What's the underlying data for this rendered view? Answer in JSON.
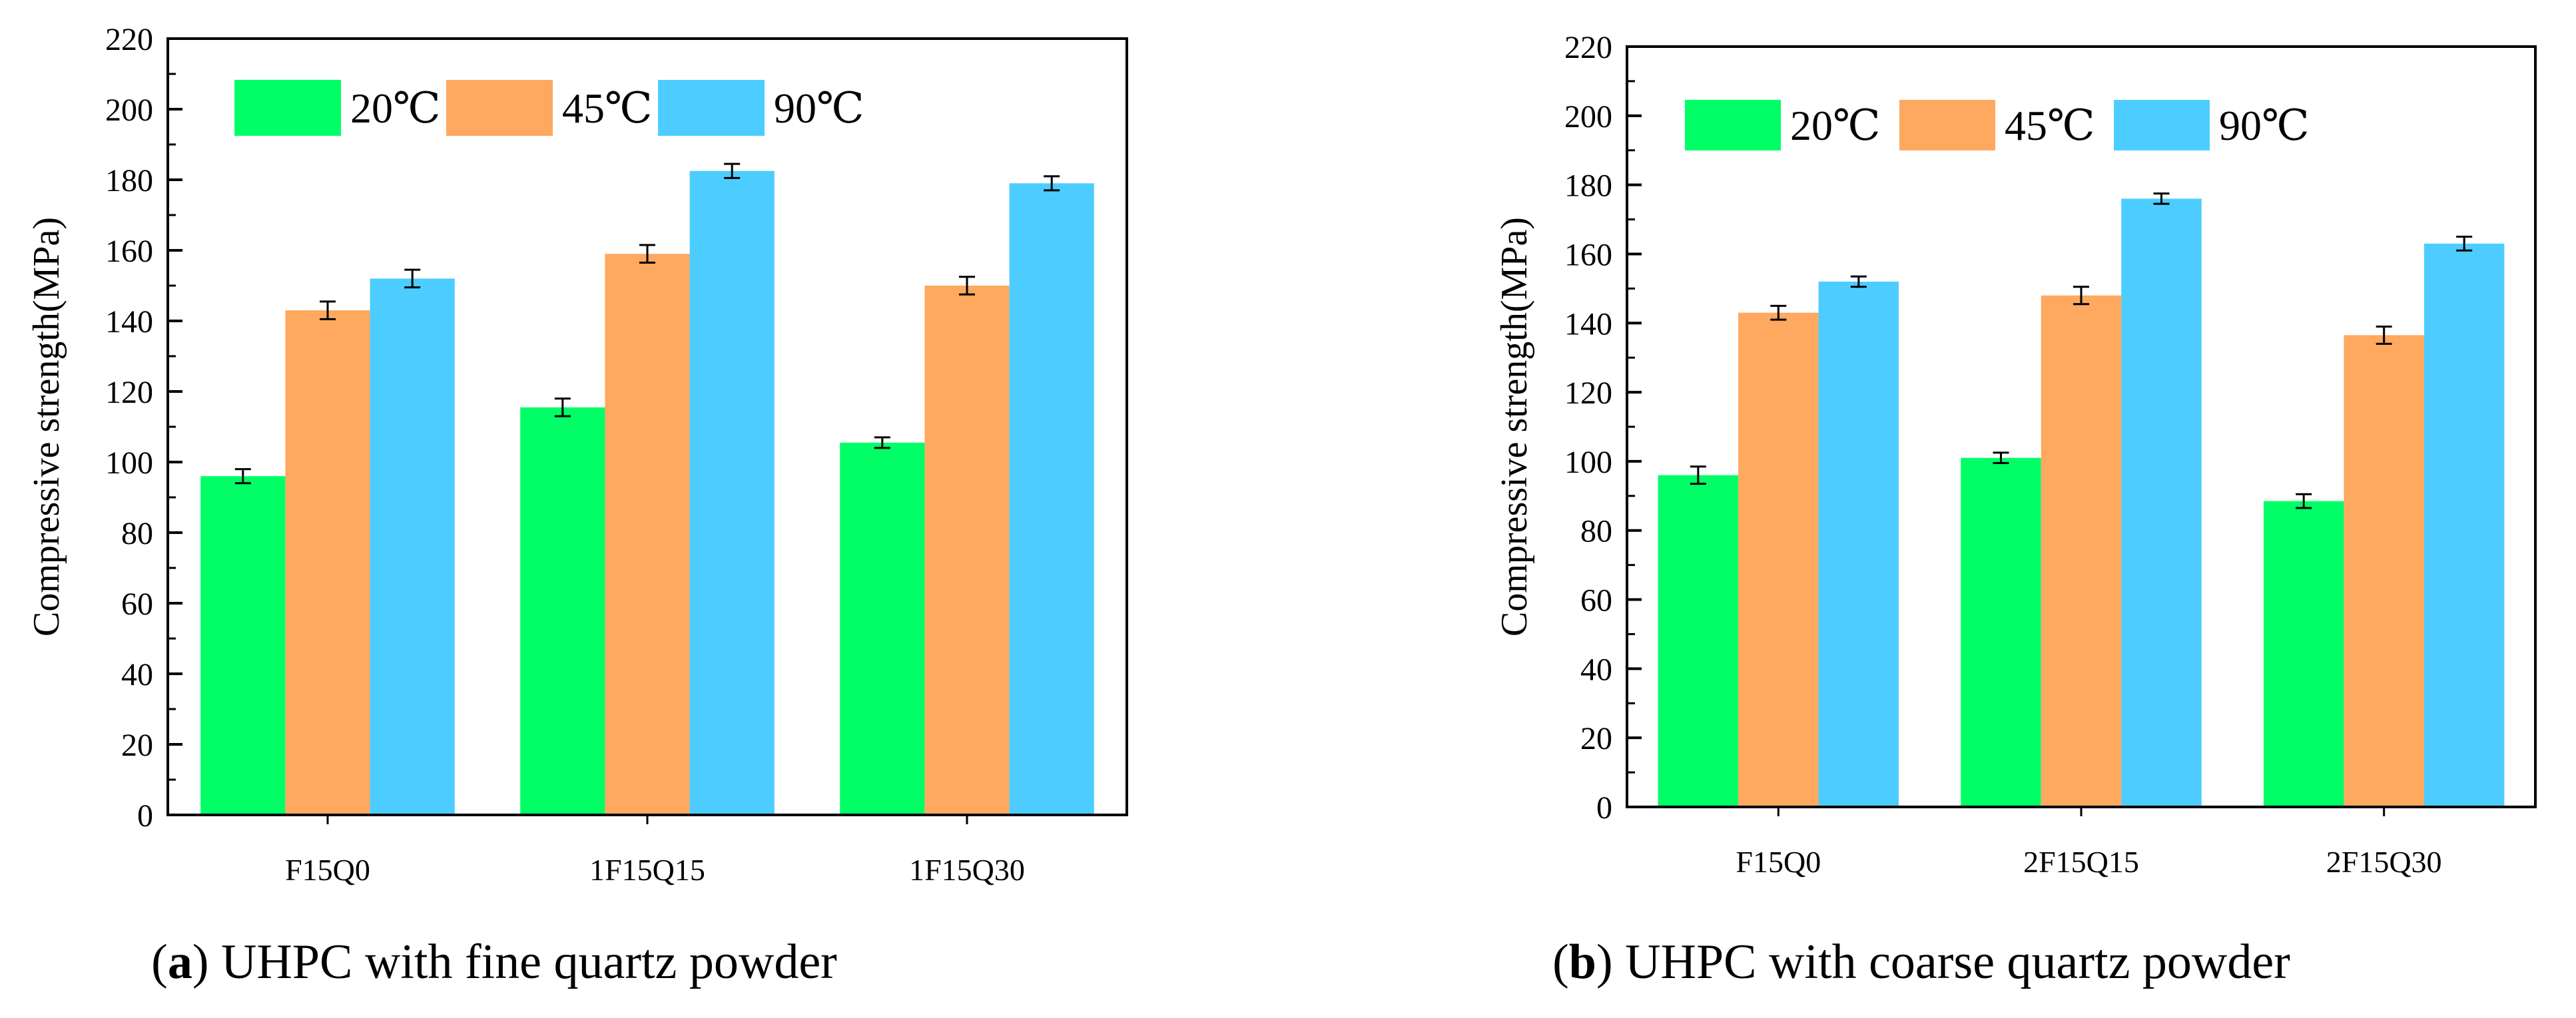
{
  "charts": [
    {
      "caption": {
        "letter": "a",
        "text": "UHPC with fine quartz powder"
      },
      "chart_data": {
        "type": "bar",
        "title": "",
        "xlabel": "",
        "ylabel": "Compressive strength(MPa)",
        "ylim": [
          0,
          220
        ],
        "yticks": [
          "0",
          "20",
          "40",
          "60",
          "80",
          "100",
          "120",
          "140",
          "160",
          "180",
          "200",
          "220"
        ],
        "categories": [
          "F15Q0",
          "1F15Q15",
          "1F15Q30"
        ],
        "legend_position": "top-left",
        "series": [
          {
            "name": "20℃",
            "color": "#00ff66",
            "values": [
              96,
              115.5,
              105.5
            ],
            "errors": [
              2,
              2.5,
              1.5
            ]
          },
          {
            "name": "45℃",
            "color": "#ffa85f",
            "values": [
              143,
              159,
              150
            ],
            "errors": [
              2.5,
              2.5,
              2.5
            ]
          },
          {
            "name": "90℃",
            "color": "#4dcdff",
            "values": [
              152,
              182.5,
              179
            ],
            "errors": [
              2.5,
              2,
              2
            ]
          }
        ]
      }
    },
    {
      "caption": {
        "letter": "b",
        "text": "UHPC with coarse quartz powder"
      },
      "chart_data": {
        "type": "bar",
        "title": "",
        "xlabel": "",
        "ylabel": "Compressive strength(MPa)",
        "ylim": [
          0,
          220
        ],
        "yticks": [
          "0",
          "20",
          "40",
          "60",
          "80",
          "100",
          "120",
          "140",
          "160",
          "180",
          "200",
          "220"
        ],
        "categories": [
          "F15Q0",
          "2F15Q15",
          "2F15Q30"
        ],
        "legend_position": "top-left",
        "series": [
          {
            "name": "20℃",
            "color": "#00ff66",
            "values": [
              96,
              101,
              88.5
            ],
            "errors": [
              2.5,
              1.5,
              2
            ]
          },
          {
            "name": "45℃",
            "color": "#ffa85f",
            "values": [
              143,
              148,
              136.5
            ],
            "errors": [
              2,
              2.5,
              2.5
            ]
          },
          {
            "name": "90℃",
            "color": "#4dcdff",
            "values": [
              152,
              176,
              163
            ],
            "errors": [
              1.5,
              1.5,
              2
            ]
          }
        ]
      }
    }
  ]
}
